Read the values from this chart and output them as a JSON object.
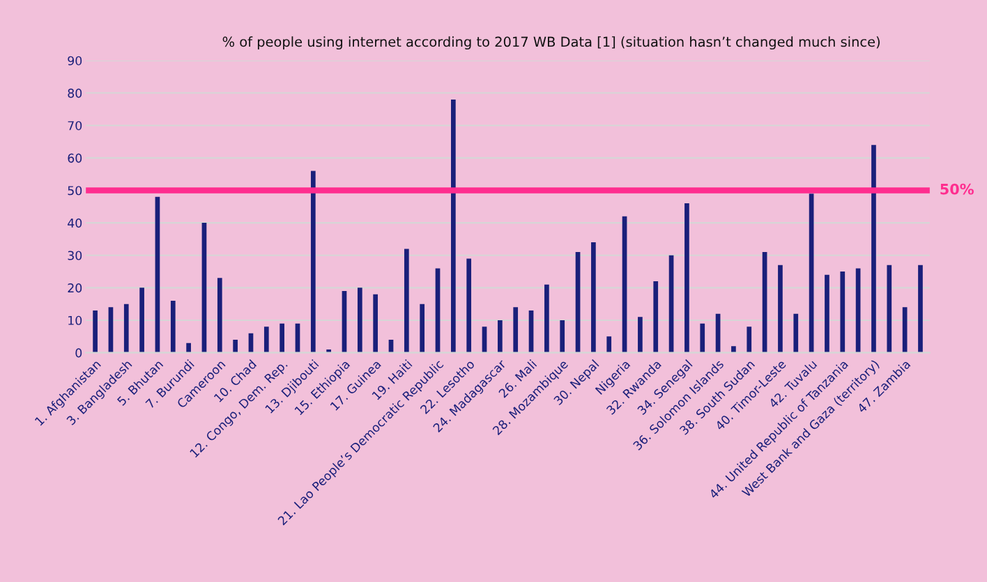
{
  "chart_data": {
    "type": "bar",
    "title": "% of people using internet according to 2017 WB Data [1] (situation hasn’t changed much since)",
    "categories": [
      "1. Afghanistan",
      null,
      "3. Bangladesh",
      null,
      "5. Bhutan",
      null,
      "7. Burundi",
      null,
      "Cameroon",
      null,
      "10. Chad",
      null,
      "12. Congo, Dem. Rep.",
      null,
      "13. Djibouti",
      null,
      "15. Ethiopia",
      null,
      "17. Guinea",
      null,
      "19. Haiti",
      null,
      "21. Lao People’s Democratic Republic",
      null,
      "22. Lesotho",
      null,
      "24. Madagascar",
      null,
      "26. Mali",
      null,
      "28. Mozambique",
      null,
      "30. Nepal",
      null,
      "Nigeria",
      null,
      "32. Rwanda",
      null,
      "34. Senegal",
      null,
      "36. Solomon Islands",
      null,
      "38. South Sudan",
      null,
      "40. Timor-Leste",
      null,
      "42. Tuvalu",
      null,
      "44. United Republic of Tanzania",
      null,
      "West Bank and Gaza (territory)",
      null,
      "47. Zambia",
      null
    ],
    "values": [
      13,
      14,
      15,
      20,
      48,
      16,
      3,
      40,
      23,
      4,
      6,
      8,
      9,
      9,
      56,
      1,
      19,
      20,
      18,
      4,
      32,
      15,
      26,
      78,
      29,
      8,
      10,
      14,
      13,
      21,
      10,
      31,
      34,
      5,
      42,
      11,
      22,
      30,
      46,
      9,
      12,
      2,
      8,
      31,
      27,
      12,
      49,
      24,
      25,
      26,
      64,
      27,
      14,
      27
    ],
    "color": "#1a1f7a",
    "ylim": [
      0,
      90
    ],
    "yticks": [
      0,
      10,
      20,
      30,
      40,
      50,
      60,
      70,
      80,
      90
    ],
    "grid": "y",
    "ref_lines": [
      {
        "axis": "y",
        "value": 50,
        "label": "50%",
        "color": "#ff2d8f"
      }
    ]
  }
}
